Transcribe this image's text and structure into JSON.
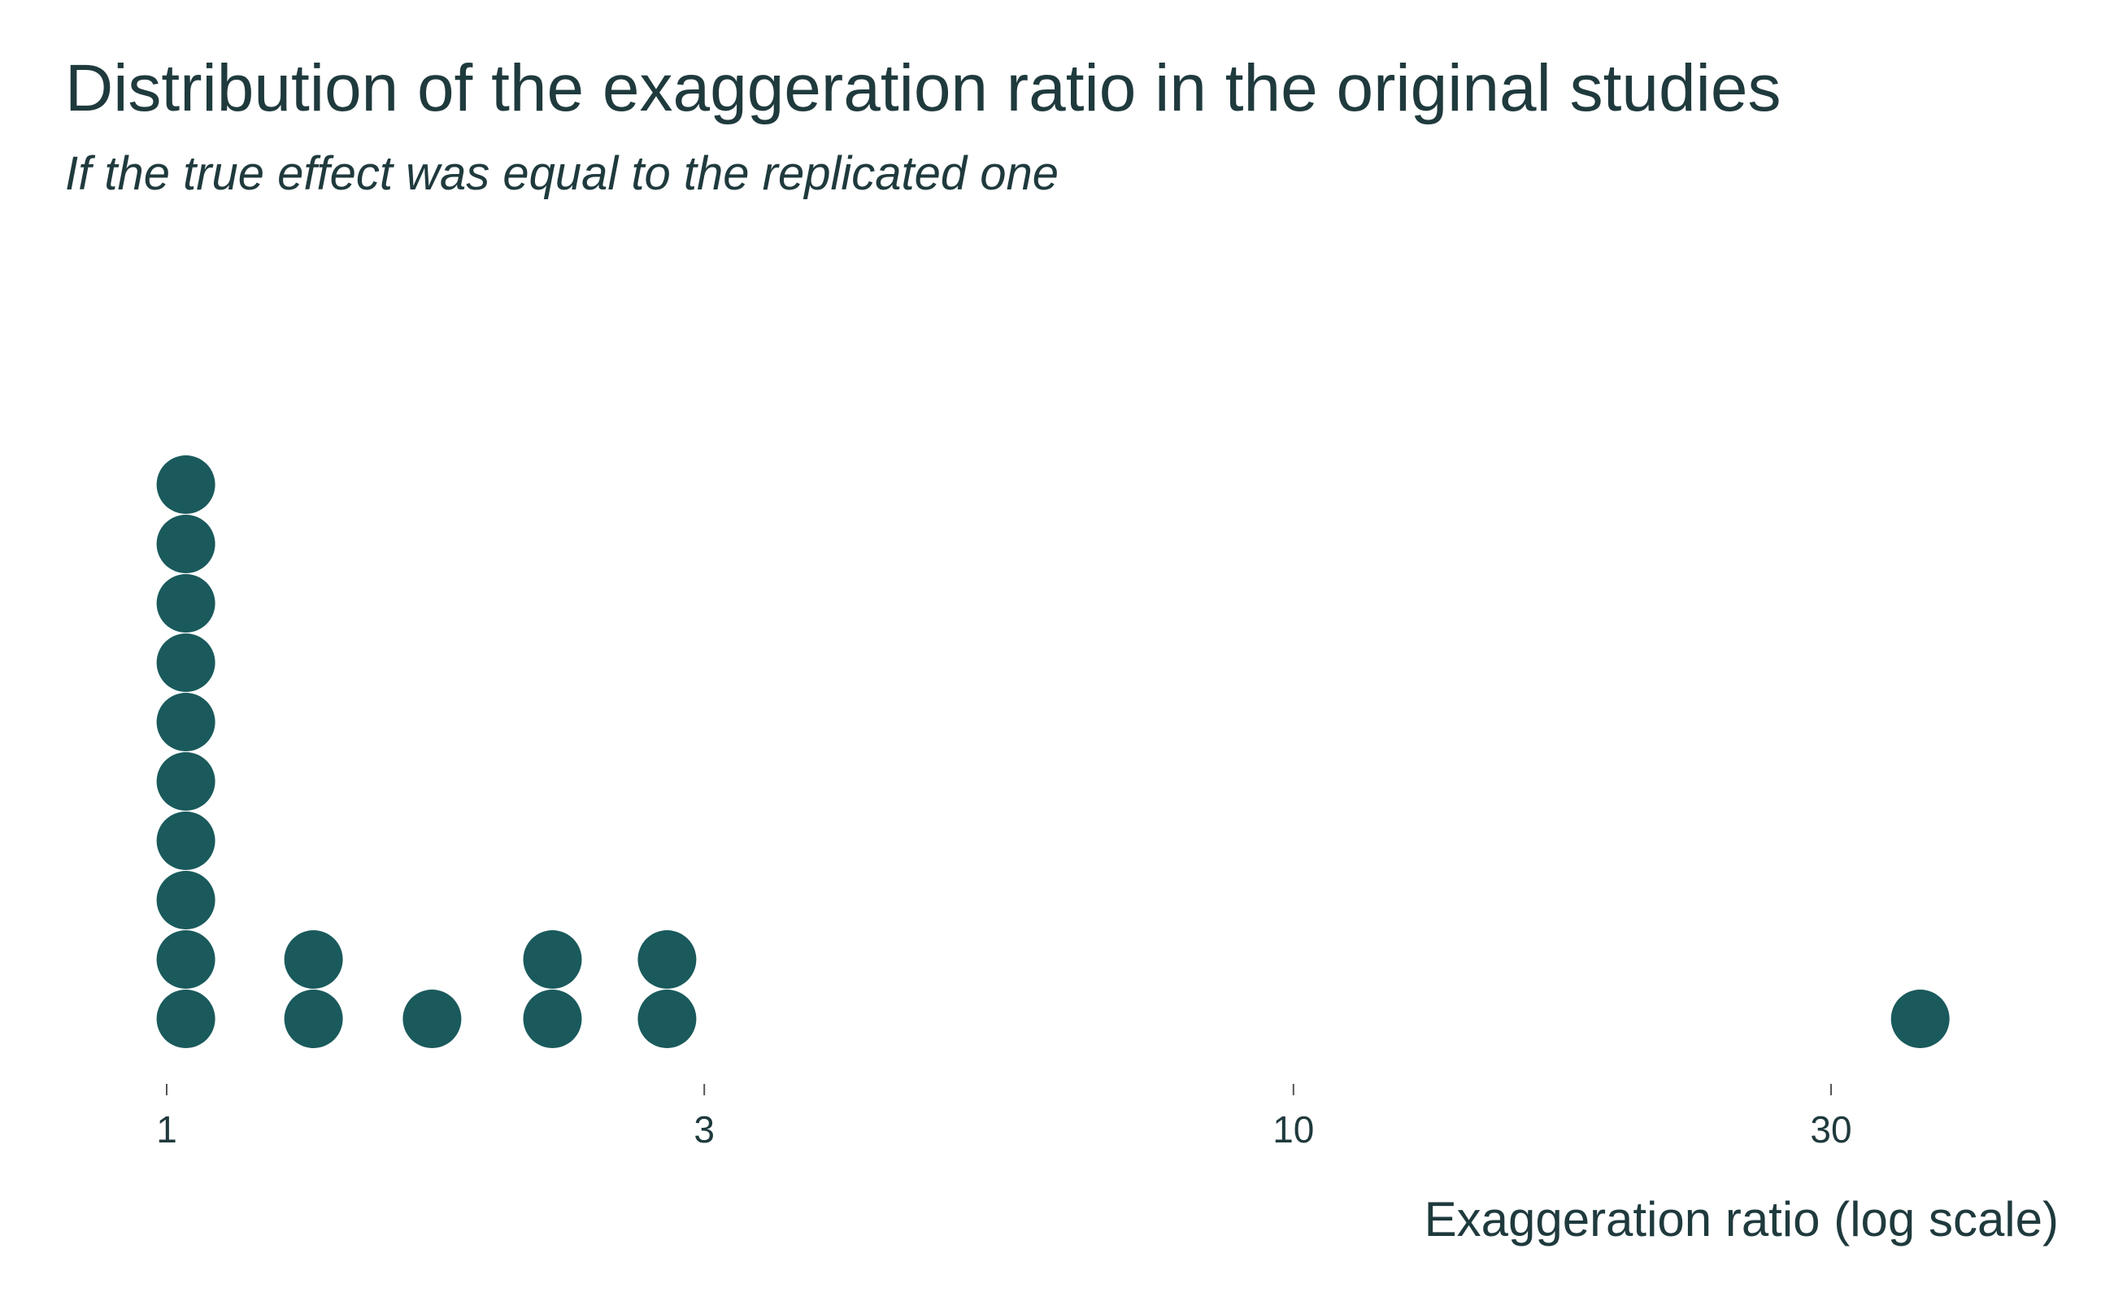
{
  "chart_data": {
    "type": "dotplot",
    "title": "Distribution of the exaggeration ratio in the original studies",
    "subtitle": "If the true effect was equal to the replicated one",
    "xlabel": "Exaggeration ratio (log scale)",
    "x_scale": "log",
    "xlim": [
      0.97,
      40
    ],
    "x_ticks": [
      1,
      3,
      10,
      30
    ],
    "x_tick_labels": [
      "1",
      "3",
      "10",
      "30"
    ],
    "grid": false,
    "dot_color": "#1a5a5c",
    "bins": [
      {
        "x": 1.04,
        "count": 10
      },
      {
        "x": 1.35,
        "count": 2
      },
      {
        "x": 1.72,
        "count": 1
      },
      {
        "x": 2.2,
        "count": 2
      },
      {
        "x": 2.78,
        "count": 2
      },
      {
        "x": 36.0,
        "count": 1
      }
    ]
  }
}
